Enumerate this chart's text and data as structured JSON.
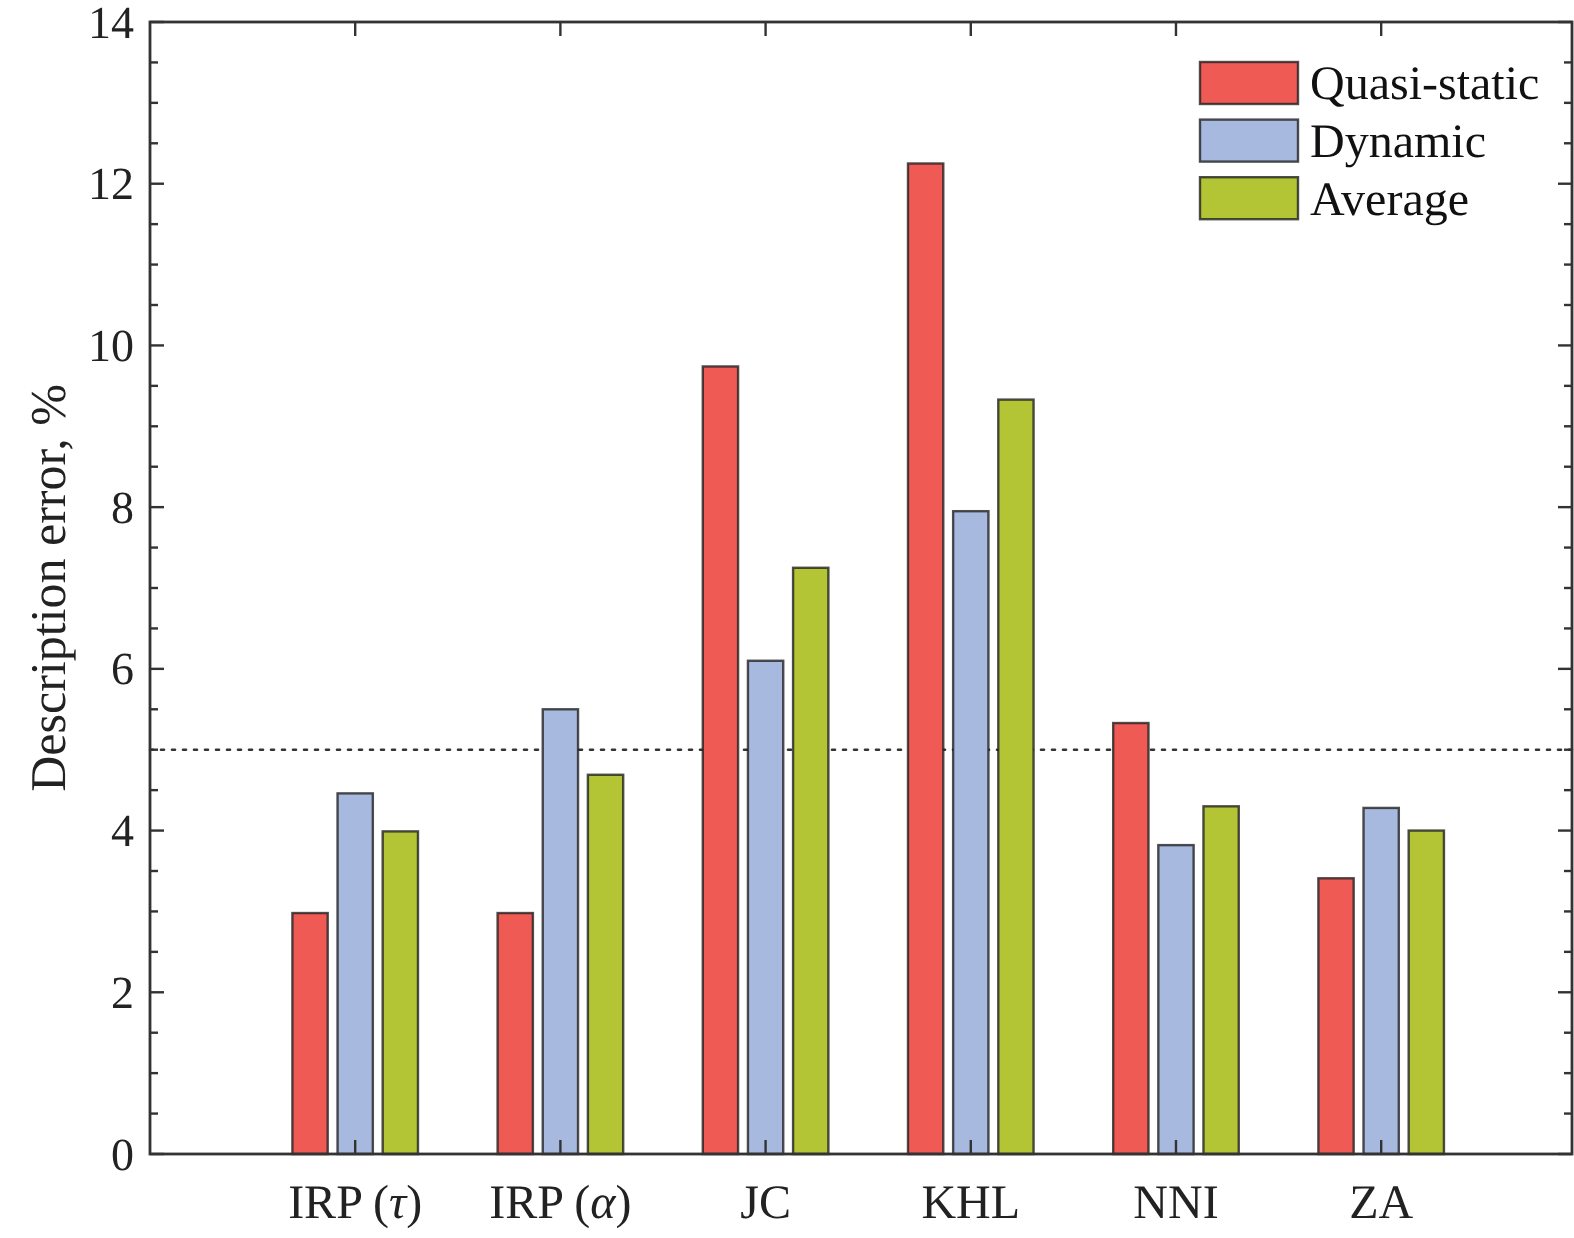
{
  "chart_data": {
    "type": "bar",
    "ylabel": "Description error, %",
    "categories": [
      "IRP (τ)",
      "IRP (α)",
      "JC",
      "KHL",
      "NNI",
      "ZA"
    ],
    "series": [
      {
        "name": "Quasi-static",
        "color": "#f05a55",
        "values": [
          2.98,
          2.98,
          9.74,
          12.25,
          5.33,
          3.41
        ]
      },
      {
        "name": "Dynamic",
        "color": "#a8b9e0",
        "values": [
          4.46,
          5.5,
          6.1,
          7.95,
          3.82,
          4.28
        ]
      },
      {
        "name": "Average",
        "color": "#b3c535",
        "values": [
          3.99,
          4.69,
          7.25,
          9.33,
          4.3,
          4.0
        ]
      }
    ],
    "ylim": [
      0,
      14
    ],
    "yticks": [
      0,
      {
        "value": 0.5,
        "label": null
      },
      {
        "value": 1,
        "label": null
      },
      {
        "value": 1.5,
        "label": null
      },
      2,
      {
        "value": 2.5,
        "label": null
      },
      {
        "value": 3,
        "label": null
      },
      {
        "value": 3.5,
        "label": null
      },
      4,
      {
        "value": 4.5,
        "label": null
      },
      {
        "value": 5,
        "label": null
      },
      {
        "value": 5.5,
        "label": null
      },
      6,
      {
        "value": 6.5,
        "label": null
      },
      {
        "value": 7,
        "label": null
      },
      {
        "value": 7.5,
        "label": null
      },
      8,
      {
        "value": 8.5,
        "label": null
      },
      {
        "value": 9,
        "label": null
      },
      {
        "value": 9.5,
        "label": null
      },
      10,
      {
        "value": 10.5,
        "label": null
      },
      {
        "value": 11,
        "label": null
      },
      {
        "value": 11.5,
        "label": null
      },
      12,
      {
        "value": 12.5,
        "label": null
      },
      {
        "value": 13,
        "label": null
      },
      {
        "value": 13.5,
        "label": null
      },
      14
    ],
    "ref_lines": [
      {
        "axis": "y",
        "value": 5,
        "line_style": "dotted",
        "color": "#333333"
      }
    ],
    "legend": "top right"
  }
}
